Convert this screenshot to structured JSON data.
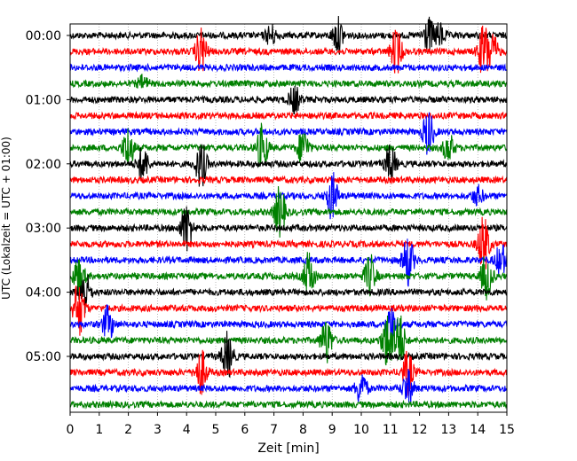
{
  "chart_data": {
    "type": "line",
    "xlabel": "Zeit  [min]",
    "ylabel": "UTC (Lokalzeit = UTC + 01:00)",
    "xlim": [
      0,
      15
    ],
    "x_ticks": [
      "0",
      "1",
      "2",
      "3",
      "4",
      "5",
      "6",
      "7",
      "8",
      "9",
      "10",
      "11",
      "12",
      "13",
      "14",
      "15"
    ],
    "y_ticks": [
      "00:00",
      "01:00",
      "02:00",
      "03:00",
      "04:00",
      "05:00"
    ],
    "grid": "vertical dotted lines at each minute",
    "trace_interval_minutes": 15,
    "trace_count": 24,
    "trace_colors": [
      "#000000",
      "#ff0000",
      "#0000ff",
      "#008000"
    ],
    "events": [
      {
        "row": 0,
        "x": 6.9,
        "amp": 0.9
      },
      {
        "row": 0,
        "x": 9.2,
        "amp": 1.5
      },
      {
        "row": 0,
        "x": 12.3,
        "amp": 1.5
      },
      {
        "row": 0,
        "x": 12.7,
        "amp": 1.0
      },
      {
        "row": 1,
        "x": 4.5,
        "amp": 2.0
      },
      {
        "row": 1,
        "x": 11.2,
        "amp": 2.0
      },
      {
        "row": 1,
        "x": 14.2,
        "amp": 2.2
      },
      {
        "row": 1,
        "x": 14.5,
        "amp": 1.5
      },
      {
        "row": 3,
        "x": 2.5,
        "amp": 0.6
      },
      {
        "row": 4,
        "x": 7.7,
        "amp": 1.2
      },
      {
        "row": 6,
        "x": 12.3,
        "amp": 2.0
      },
      {
        "row": 7,
        "x": 2.0,
        "amp": 1.8
      },
      {
        "row": 7,
        "x": 6.6,
        "amp": 2.0
      },
      {
        "row": 7,
        "x": 8.0,
        "amp": 1.6
      },
      {
        "row": 7,
        "x": 13.0,
        "amp": 1.2
      },
      {
        "row": 8,
        "x": 2.5,
        "amp": 1.5
      },
      {
        "row": 8,
        "x": 4.5,
        "amp": 2.0
      },
      {
        "row": 8,
        "x": 11.0,
        "amp": 1.6
      },
      {
        "row": 10,
        "x": 9.0,
        "amp": 2.0
      },
      {
        "row": 10,
        "x": 14.0,
        "amp": 0.8
      },
      {
        "row": 11,
        "x": 7.2,
        "amp": 2.2
      },
      {
        "row": 12,
        "x": 4.0,
        "amp": 2.2
      },
      {
        "row": 13,
        "x": 14.2,
        "amp": 2.5
      },
      {
        "row": 14,
        "x": 11.6,
        "amp": 2.2
      },
      {
        "row": 14,
        "x": 14.8,
        "amp": 1.5
      },
      {
        "row": 15,
        "x": 0.3,
        "amp": 1.8
      },
      {
        "row": 15,
        "x": 8.2,
        "amp": 2.0
      },
      {
        "row": 15,
        "x": 10.3,
        "amp": 1.8
      },
      {
        "row": 15,
        "x": 14.3,
        "amp": 2.0
      },
      {
        "row": 16,
        "x": 0.5,
        "amp": 2.0
      },
      {
        "row": 17,
        "x": 0.3,
        "amp": 2.5
      },
      {
        "row": 18,
        "x": 1.3,
        "amp": 1.5
      },
      {
        "row": 18,
        "x": 11.0,
        "amp": 1.5
      },
      {
        "row": 19,
        "x": 8.8,
        "amp": 2.0
      },
      {
        "row": 19,
        "x": 10.9,
        "amp": 2.5
      },
      {
        "row": 19,
        "x": 11.3,
        "amp": 2.5
      },
      {
        "row": 20,
        "x": 5.4,
        "amp": 2.0
      },
      {
        "row": 21,
        "x": 4.5,
        "amp": 2.0
      },
      {
        "row": 21,
        "x": 11.6,
        "amp": 1.8
      },
      {
        "row": 22,
        "x": 10.0,
        "amp": 1.5
      },
      {
        "row": 22,
        "x": 11.6,
        "amp": 1.5
      }
    ]
  }
}
